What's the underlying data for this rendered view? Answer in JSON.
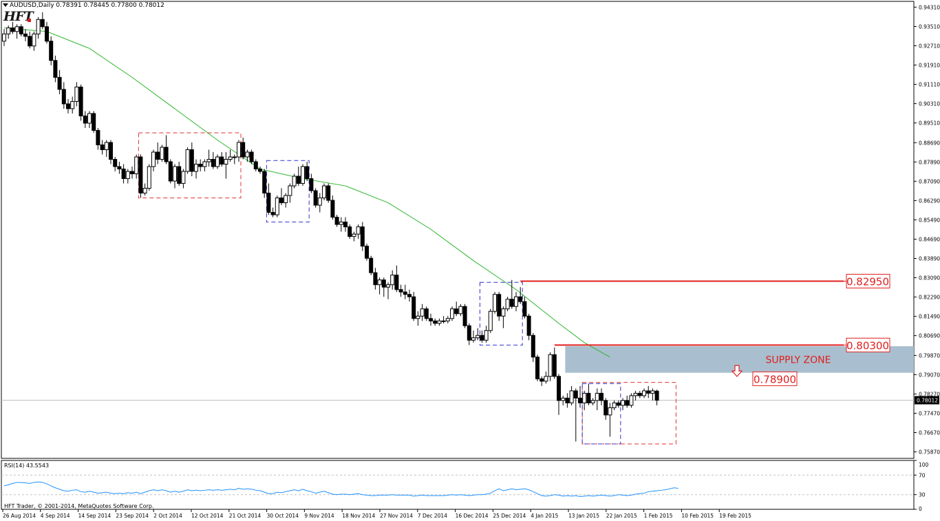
{
  "window": {
    "symbol_line": "AUDUSD,Daily  0.78391 0.78445 0.77800 0.78012",
    "logo_text": "HFT",
    "copyright": "HFT Trader, © 2001-2014, MetaQuotes Software Corp."
  },
  "colors": {
    "background": "#ffffff",
    "candle_bull": "#ffffff",
    "candle_bear": "#000000",
    "ma_line": "#2db52d",
    "rsi_line": "#1e90ff",
    "level_line": "#e01e1e",
    "zone_fill": "#a9bfcf",
    "box_red": "#e03030",
    "box_blue": "#3030d0"
  },
  "chart_data": {
    "type": "candlestick",
    "symbol": "AUDUSD",
    "timeframe": "Daily",
    "last_price": "0.78012",
    "y_ticks": [
      "0.94310",
      "0.93510",
      "0.92710",
      "0.91910",
      "0.91110",
      "0.90310",
      "0.89510",
      "0.88690",
      "0.87890",
      "0.87090",
      "0.86290",
      "0.85490",
      "0.84690",
      "0.83890",
      "0.83090",
      "0.82290",
      "0.81490",
      "0.80690",
      "0.79870",
      "0.79070",
      "0.78270",
      "0.77470",
      "0.76670",
      "0.75870"
    ],
    "ylim": [
      0.756,
      0.9455
    ],
    "x_labels": [
      "26 Aug 2014",
      "4 Sep 2014",
      "14 Sep 2014",
      "23 Sep 2014",
      "2 Oct 2014",
      "12 Oct 2014",
      "21 Oct 2014",
      "30 Oct 2014",
      "9 Nov 2014",
      "18 Nov 2014",
      "27 Nov 2014",
      "7 Dec 2014",
      "16 Dec 2014",
      "25 Dec 2014",
      "4 Jan 2015",
      "13 Jan 2015",
      "22 Jan 2015",
      "1 Feb 2015",
      "10 Feb 2015",
      "19 Feb 2015"
    ],
    "candles": [
      [
        0.929,
        0.934,
        0.927,
        0.932
      ],
      [
        0.932,
        0.9355,
        0.93,
        0.9345
      ],
      [
        0.9345,
        0.937,
        0.932,
        0.933
      ],
      [
        0.933,
        0.936,
        0.93,
        0.935
      ],
      [
        0.935,
        0.936,
        0.931,
        0.932
      ],
      [
        0.932,
        0.934,
        0.929,
        0.931
      ],
      [
        0.931,
        0.933,
        0.926,
        0.927
      ],
      [
        0.927,
        0.933,
        0.925,
        0.932
      ],
      [
        0.932,
        0.939,
        0.93,
        0.938
      ],
      [
        0.938,
        0.941,
        0.934,
        0.935
      ],
      [
        0.935,
        0.937,
        0.928,
        0.929
      ],
      [
        0.929,
        0.931,
        0.919,
        0.921
      ],
      [
        0.921,
        0.923,
        0.912,
        0.914
      ],
      [
        0.914,
        0.917,
        0.907,
        0.909
      ],
      [
        0.909,
        0.912,
        0.901,
        0.903
      ],
      [
        0.903,
        0.905,
        0.899,
        0.901
      ],
      [
        0.901,
        0.906,
        0.899,
        0.904
      ],
      [
        0.904,
        0.912,
        0.902,
        0.91
      ],
      [
        0.91,
        0.911,
        0.896,
        0.898
      ],
      [
        0.898,
        0.9,
        0.893,
        0.895
      ],
      [
        0.895,
        0.9,
        0.893,
        0.899
      ],
      [
        0.899,
        0.9,
        0.891,
        0.892
      ],
      [
        0.892,
        0.893,
        0.884,
        0.886
      ],
      [
        0.886,
        0.888,
        0.882,
        0.884
      ],
      [
        0.884,
        0.888,
        0.881,
        0.887
      ],
      [
        0.887,
        0.888,
        0.878,
        0.88
      ],
      [
        0.88,
        0.881,
        0.875,
        0.877
      ],
      [
        0.877,
        0.879,
        0.874,
        0.876
      ],
      [
        0.876,
        0.878,
        0.87,
        0.872
      ],
      [
        0.872,
        0.876,
        0.87,
        0.875
      ],
      [
        0.875,
        0.877,
        0.872,
        0.874
      ],
      [
        0.874,
        0.882,
        0.872,
        0.881
      ],
      [
        0.881,
        0.882,
        0.864,
        0.866
      ],
      [
        0.866,
        0.87,
        0.865,
        0.868
      ],
      [
        0.868,
        0.878,
        0.867,
        0.877
      ],
      [
        0.877,
        0.884,
        0.875,
        0.883
      ],
      [
        0.883,
        0.887,
        0.878,
        0.88
      ],
      [
        0.88,
        0.886,
        0.879,
        0.885
      ],
      [
        0.885,
        0.89,
        0.878,
        0.879
      ],
      [
        0.879,
        0.88,
        0.87,
        0.871
      ],
      [
        0.871,
        0.878,
        0.868,
        0.877
      ],
      [
        0.877,
        0.879,
        0.869,
        0.87
      ],
      [
        0.87,
        0.876,
        0.868,
        0.875
      ],
      [
        0.875,
        0.885,
        0.874,
        0.884
      ],
      [
        0.884,
        0.887,
        0.873,
        0.875
      ],
      [
        0.875,
        0.88,
        0.872,
        0.878
      ],
      [
        0.878,
        0.88,
        0.875,
        0.877
      ],
      [
        0.877,
        0.88,
        0.875,
        0.879
      ],
      [
        0.879,
        0.884,
        0.877,
        0.88
      ],
      [
        0.88,
        0.883,
        0.876,
        0.877
      ],
      [
        0.877,
        0.882,
        0.876,
        0.881
      ],
      [
        0.881,
        0.883,
        0.877,
        0.878
      ],
      [
        0.878,
        0.883,
        0.872,
        0.88
      ],
      [
        0.88,
        0.884,
        0.879,
        0.881
      ],
      [
        0.881,
        0.882,
        0.878,
        0.881
      ],
      [
        0.881,
        0.888,
        0.879,
        0.887
      ],
      [
        0.887,
        0.889,
        0.88,
        0.881
      ],
      [
        0.881,
        0.884,
        0.879,
        0.883
      ],
      [
        0.883,
        0.884,
        0.878,
        0.879
      ],
      [
        0.879,
        0.88,
        0.875,
        0.876
      ],
      [
        0.876,
        0.877,
        0.874,
        0.875
      ],
      [
        0.875,
        0.876,
        0.864,
        0.866
      ],
      [
        0.866,
        0.87,
        0.857,
        0.858
      ],
      [
        0.858,
        0.86,
        0.856,
        0.857
      ],
      [
        0.857,
        0.865,
        0.856,
        0.864
      ],
      [
        0.864,
        0.868,
        0.861,
        0.862
      ],
      [
        0.862,
        0.866,
        0.86,
        0.865
      ],
      [
        0.865,
        0.87,
        0.862,
        0.869
      ],
      [
        0.869,
        0.874,
        0.868,
        0.873
      ],
      [
        0.873,
        0.877,
        0.869,
        0.87
      ],
      [
        0.87,
        0.878,
        0.869,
        0.877
      ],
      [
        0.877,
        0.879,
        0.871,
        0.872
      ],
      [
        0.872,
        0.874,
        0.866,
        0.867
      ],
      [
        0.867,
        0.868,
        0.86,
        0.861
      ],
      [
        0.861,
        0.866,
        0.858,
        0.864
      ],
      [
        0.864,
        0.87,
        0.863,
        0.869
      ],
      [
        0.869,
        0.87,
        0.862,
        0.863
      ],
      [
        0.863,
        0.865,
        0.855,
        0.856
      ],
      [
        0.856,
        0.857,
        0.852,
        0.853
      ],
      [
        0.853,
        0.856,
        0.85,
        0.854
      ],
      [
        0.854,
        0.856,
        0.85,
        0.852
      ],
      [
        0.852,
        0.853,
        0.847,
        0.848
      ],
      [
        0.848,
        0.85,
        0.846,
        0.849
      ],
      [
        0.849,
        0.853,
        0.847,
        0.852
      ],
      [
        0.852,
        0.854,
        0.842,
        0.844
      ],
      [
        0.844,
        0.845,
        0.838,
        0.839
      ],
      [
        0.839,
        0.84,
        0.832,
        0.833
      ],
      [
        0.833,
        0.835,
        0.826,
        0.828
      ],
      [
        0.828,
        0.831,
        0.824,
        0.83
      ],
      [
        0.83,
        0.831,
        0.823,
        0.827
      ],
      [
        0.827,
        0.829,
        0.822,
        0.828
      ],
      [
        0.828,
        0.834,
        0.826,
        0.832
      ],
      [
        0.832,
        0.836,
        0.825,
        0.826
      ],
      [
        0.826,
        0.828,
        0.823,
        0.825
      ],
      [
        0.825,
        0.828,
        0.822,
        0.824
      ],
      [
        0.824,
        0.826,
        0.821,
        0.823
      ],
      [
        0.823,
        0.825,
        0.813,
        0.814
      ],
      [
        0.814,
        0.817,
        0.811,
        0.815
      ],
      [
        0.815,
        0.82,
        0.813,
        0.818
      ],
      [
        0.818,
        0.819,
        0.813,
        0.814
      ],
      [
        0.814,
        0.816,
        0.811,
        0.813
      ],
      [
        0.813,
        0.814,
        0.811,
        0.812
      ],
      [
        0.812,
        0.814,
        0.811,
        0.813
      ],
      [
        0.813,
        0.815,
        0.812,
        0.813
      ],
      [
        0.813,
        0.815,
        0.812,
        0.814
      ],
      [
        0.814,
        0.819,
        0.813,
        0.818
      ],
      [
        0.818,
        0.821,
        0.815,
        0.816
      ],
      [
        0.816,
        0.82,
        0.815,
        0.819
      ],
      [
        0.819,
        0.82,
        0.81,
        0.811
      ],
      [
        0.811,
        0.812,
        0.803,
        0.805
      ],
      [
        0.805,
        0.809,
        0.804,
        0.806
      ],
      [
        0.806,
        0.81,
        0.805,
        0.807
      ],
      [
        0.807,
        0.809,
        0.804,
        0.805
      ],
      [
        0.805,
        0.811,
        0.804,
        0.809
      ],
      [
        0.809,
        0.818,
        0.808,
        0.817
      ],
      [
        0.817,
        0.825,
        0.816,
        0.824
      ],
      [
        0.824,
        0.825,
        0.813,
        0.815
      ],
      [
        0.815,
        0.819,
        0.81,
        0.818
      ],
      [
        0.818,
        0.823,
        0.817,
        0.822
      ],
      [
        0.822,
        0.83,
        0.818,
        0.819
      ],
      [
        0.819,
        0.825,
        0.817,
        0.823
      ],
      [
        0.823,
        0.827,
        0.82,
        0.821
      ],
      [
        0.821,
        0.823,
        0.814,
        0.815
      ],
      [
        0.815,
        0.816,
        0.805,
        0.807
      ],
      [
        0.807,
        0.808,
        0.796,
        0.798
      ],
      [
        0.798,
        0.799,
        0.788,
        0.789
      ],
      [
        0.789,
        0.79,
        0.786,
        0.788
      ],
      [
        0.788,
        0.792,
        0.787,
        0.79
      ],
      [
        0.79,
        0.8,
        0.788,
        0.799
      ],
      [
        0.799,
        0.802,
        0.789,
        0.79
      ],
      [
        0.79,
        0.791,
        0.774,
        0.78
      ],
      [
        0.78,
        0.782,
        0.778,
        0.781
      ],
      [
        0.781,
        0.783,
        0.777,
        0.779
      ],
      [
        0.779,
        0.786,
        0.778,
        0.784
      ],
      [
        0.784,
        0.785,
        0.763,
        0.781
      ],
      [
        0.781,
        0.786,
        0.777,
        0.779
      ],
      [
        0.779,
        0.784,
        0.776,
        0.783
      ],
      [
        0.783,
        0.787,
        0.778,
        0.779
      ],
      [
        0.779,
        0.781,
        0.778,
        0.78
      ],
      [
        0.78,
        0.785,
        0.776,
        0.783
      ],
      [
        0.783,
        0.785,
        0.778,
        0.78
      ],
      [
        0.78,
        0.781,
        0.772,
        0.774
      ],
      [
        0.774,
        0.779,
        0.765,
        0.777
      ],
      [
        0.777,
        0.78,
        0.776,
        0.779
      ],
      [
        0.779,
        0.78,
        0.777,
        0.778
      ],
      [
        0.778,
        0.781,
        0.776,
        0.78
      ],
      [
        0.78,
        0.782,
        0.777,
        0.778
      ],
      [
        0.778,
        0.783,
        0.777,
        0.782
      ],
      [
        0.782,
        0.784,
        0.78,
        0.783
      ],
      [
        0.783,
        0.784,
        0.781,
        0.782
      ],
      [
        0.782,
        0.785,
        0.781,
        0.784
      ],
      [
        0.784,
        0.786,
        0.781,
        0.783
      ],
      [
        0.783,
        0.785,
        0.78,
        0.784
      ],
      [
        0.7839,
        0.7845,
        0.778,
        0.7801
      ]
    ],
    "ma": {
      "color": "#2db52d",
      "points": [
        [
          0,
          0.9345
        ],
        [
          10,
          0.933
        ],
        [
          20,
          0.926
        ],
        [
          30,
          0.914
        ],
        [
          40,
          0.901
        ],
        [
          50,
          0.888
        ],
        [
          60,
          0.876
        ],
        [
          70,
          0.872
        ],
        [
          80,
          0.869
        ],
        [
          90,
          0.862
        ],
        [
          100,
          0.851
        ],
        [
          110,
          0.838
        ],
        [
          120,
          0.826
        ],
        [
          130,
          0.812
        ],
        [
          136,
          0.804
        ],
        [
          142,
          0.798
        ]
      ]
    },
    "levels": [
      {
        "price": 0.8295,
        "label": "0.82950",
        "from_index": 121
      },
      {
        "price": 0.803,
        "label": "0.80300",
        "from_index": 129
      }
    ],
    "target_label": {
      "price": 0.789,
      "label": "0.78900"
    },
    "supply_zone": {
      "top": 0.8025,
      "bottom": 0.7915,
      "label": "SUPPLY ZONE",
      "from_index": 132
    },
    "boxes": [
      {
        "color": "red",
        "from_index": 32,
        "to_index": 55,
        "top": 0.891,
        "bottom": 0.864
      },
      {
        "color": "blue",
        "from_index": 62,
        "to_index": 71,
        "top": 0.8795,
        "bottom": 0.854
      },
      {
        "color": "blue",
        "from_index": 112,
        "to_index": 121,
        "top": 0.829,
        "bottom": 0.803
      },
      {
        "color": "red",
        "from_index": 136,
        "to_index": 157,
        "top": 0.7875,
        "bottom": 0.762
      },
      {
        "color": "blue",
        "from_index": 136,
        "to_index": 144,
        "top": 0.787,
        "bottom": 0.762
      }
    ],
    "rsi": {
      "label": "RSI(14) 43.5543",
      "levels": [
        "70",
        "30"
      ],
      "axis_labels": [
        "100",
        "70",
        "30",
        "0"
      ],
      "values": [
        48,
        50,
        53,
        55,
        55,
        54,
        53,
        55,
        56,
        55,
        52,
        48,
        44,
        41,
        38,
        37,
        39,
        40,
        36,
        35,
        37,
        35,
        33,
        34,
        35,
        33,
        32,
        33,
        32,
        34,
        33,
        35,
        32,
        35,
        38,
        40,
        38,
        40,
        38,
        35,
        37,
        35,
        37,
        40,
        38,
        39,
        38,
        39,
        40,
        39,
        40,
        39,
        40,
        41,
        40,
        43,
        41,
        42,
        41,
        39,
        38,
        35,
        32,
        32,
        35,
        34,
        36,
        38,
        40,
        38,
        41,
        38,
        36,
        33,
        35,
        37,
        34,
        31,
        30,
        31,
        31,
        30,
        31,
        32,
        30,
        29,
        28,
        28,
        29,
        29,
        29,
        30,
        29,
        29,
        29,
        29,
        27,
        28,
        29,
        28,
        28,
        28,
        28,
        28,
        29,
        30,
        29,
        30,
        29,
        28,
        29,
        30,
        30,
        31,
        33,
        38,
        42,
        38,
        40,
        42,
        40,
        41,
        42,
        40,
        36,
        32,
        28,
        27,
        28,
        30,
        29,
        27,
        28,
        27,
        28,
        26,
        27,
        28,
        27,
        28,
        29,
        28,
        27,
        28,
        30,
        29,
        28,
        29,
        31,
        32,
        33,
        36,
        37,
        38,
        39,
        40,
        42,
        44,
        43
      ]
    }
  }
}
